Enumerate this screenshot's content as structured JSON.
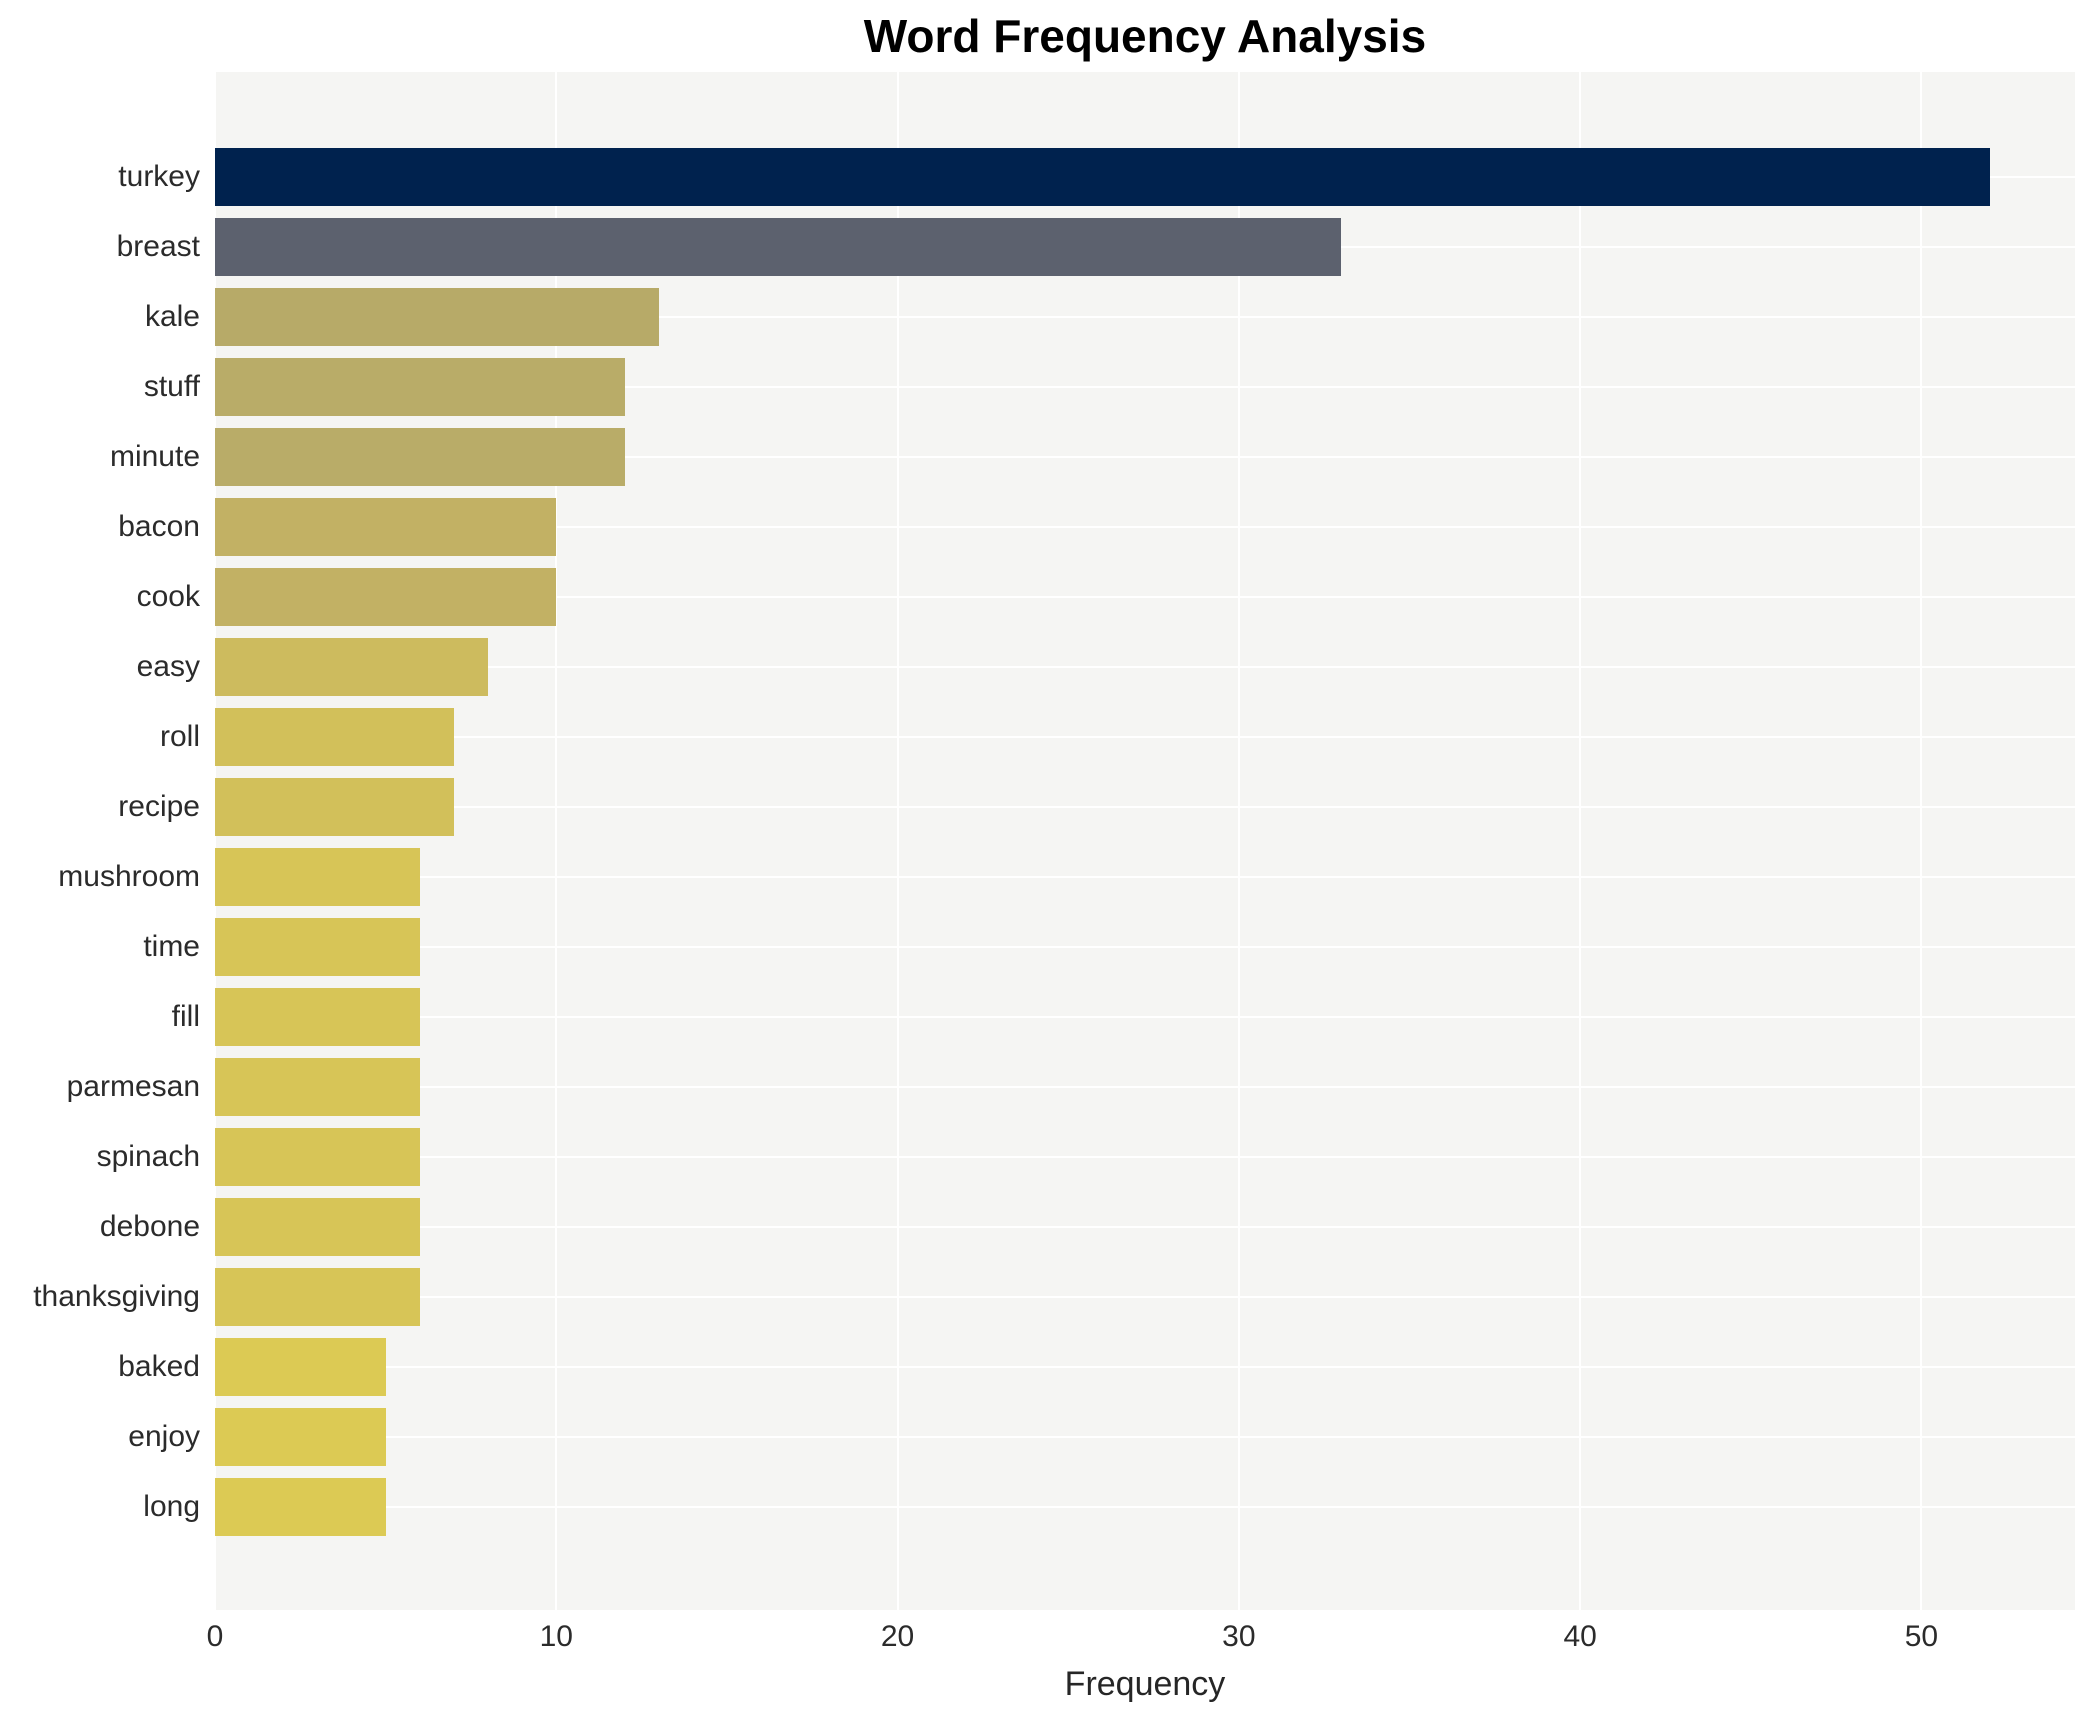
{
  "chart_data": {
    "type": "bar",
    "orientation": "horizontal",
    "title": "Word Frequency Analysis",
    "xlabel": "Frequency",
    "ylabel": "",
    "xlim": [
      0,
      54.5
    ],
    "xticks": [
      0,
      10,
      20,
      30,
      40,
      50
    ],
    "grid": true,
    "legend": "none",
    "categories": [
      "turkey",
      "breast",
      "kale",
      "stuff",
      "minute",
      "bacon",
      "cook",
      "easy",
      "roll",
      "recipe",
      "mushroom",
      "time",
      "fill",
      "parmesan",
      "spinach",
      "debone",
      "thanksgiving",
      "baked",
      "enjoy",
      "long"
    ],
    "values": [
      52,
      33,
      13,
      12,
      12,
      10,
      10,
      8,
      7,
      7,
      6,
      6,
      6,
      6,
      6,
      6,
      6,
      5,
      5,
      5
    ],
    "bar_colors": [
      "#00224e",
      "#5c616e",
      "#b7aa68",
      "#b9ac68",
      "#b9ac68",
      "#c2b164",
      "#c2b164",
      "#cdbb5e",
      "#d2c05a",
      "#d2c05a",
      "#d7c557",
      "#d7c557",
      "#d7c557",
      "#d7c557",
      "#d7c557",
      "#d7c557",
      "#d7c557",
      "#dcca54",
      "#dcca54",
      "#dcca54"
    ],
    "colors": {
      "plot_background": "#f5f5f3",
      "gridline": "#ffffff",
      "title_text": "#000000",
      "axis_text": "#2b2b2b"
    }
  }
}
